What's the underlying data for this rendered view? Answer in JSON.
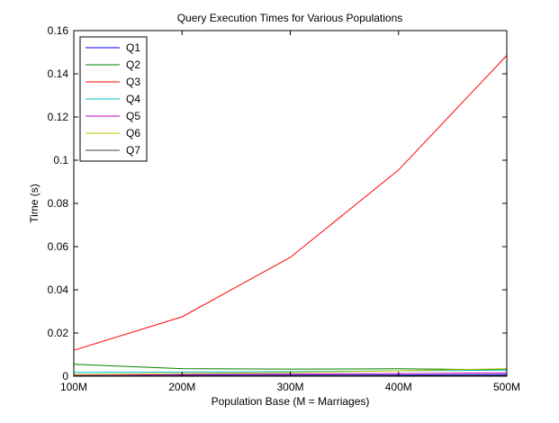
{
  "figure": {
    "background": "#ffffff",
    "axes_background": "#ffffff"
  },
  "chart_data": {
    "type": "line",
    "title": "Query Execution Times for Various Populations",
    "xlabel": "Population Base (M = Marriages)",
    "ylabel": "Time (s)",
    "x": [
      100,
      200,
      300,
      400,
      500
    ],
    "xlim": [
      100,
      500
    ],
    "ylim": [
      0,
      0.16
    ],
    "xticks": [
      100,
      200,
      300,
      400,
      500
    ],
    "xtick_labels": [
      "100M",
      "200M",
      "300M",
      "400M",
      "500M"
    ],
    "yticks": [
      0,
      0.02,
      0.04,
      0.06,
      0.08,
      0.1,
      0.12,
      0.14,
      0.16
    ],
    "ytick_labels": [
      "0",
      "0.02",
      "0.04",
      "0.06",
      "0.08",
      "0.1",
      "0.12",
      "0.14",
      "0.16"
    ],
    "grid": false,
    "legend_position": "top-left",
    "series": [
      {
        "name": "Q1",
        "color": "#0000ff",
        "values": [
          0.0003,
          0.0004,
          0.0005,
          0.0006,
          0.0008
        ]
      },
      {
        "name": "Q2",
        "color": "#008000",
        "values": [
          0.0055,
          0.0035,
          0.0033,
          0.0034,
          0.003
        ]
      },
      {
        "name": "Q3",
        "color": "#ff0000",
        "values": [
          0.012,
          0.0275,
          0.055,
          0.0955,
          0.1485
        ]
      },
      {
        "name": "Q4",
        "color": "#00bfbf",
        "values": [
          0.0018,
          0.0019,
          0.0021,
          0.0025,
          0.0028
        ]
      },
      {
        "name": "Q5",
        "color": "#bf00bf",
        "values": [
          0.0004,
          0.0007,
          0.001,
          0.0012,
          0.0016
        ]
      },
      {
        "name": "Q6",
        "color": "#bfbf00",
        "values": [
          0.0008,
          0.0012,
          0.0017,
          0.0025,
          0.0035
        ]
      },
      {
        "name": "Q7",
        "color": "#404040",
        "values": [
          0.0002,
          0.0002,
          0.0003,
          0.0003,
          0.0004
        ]
      }
    ]
  }
}
